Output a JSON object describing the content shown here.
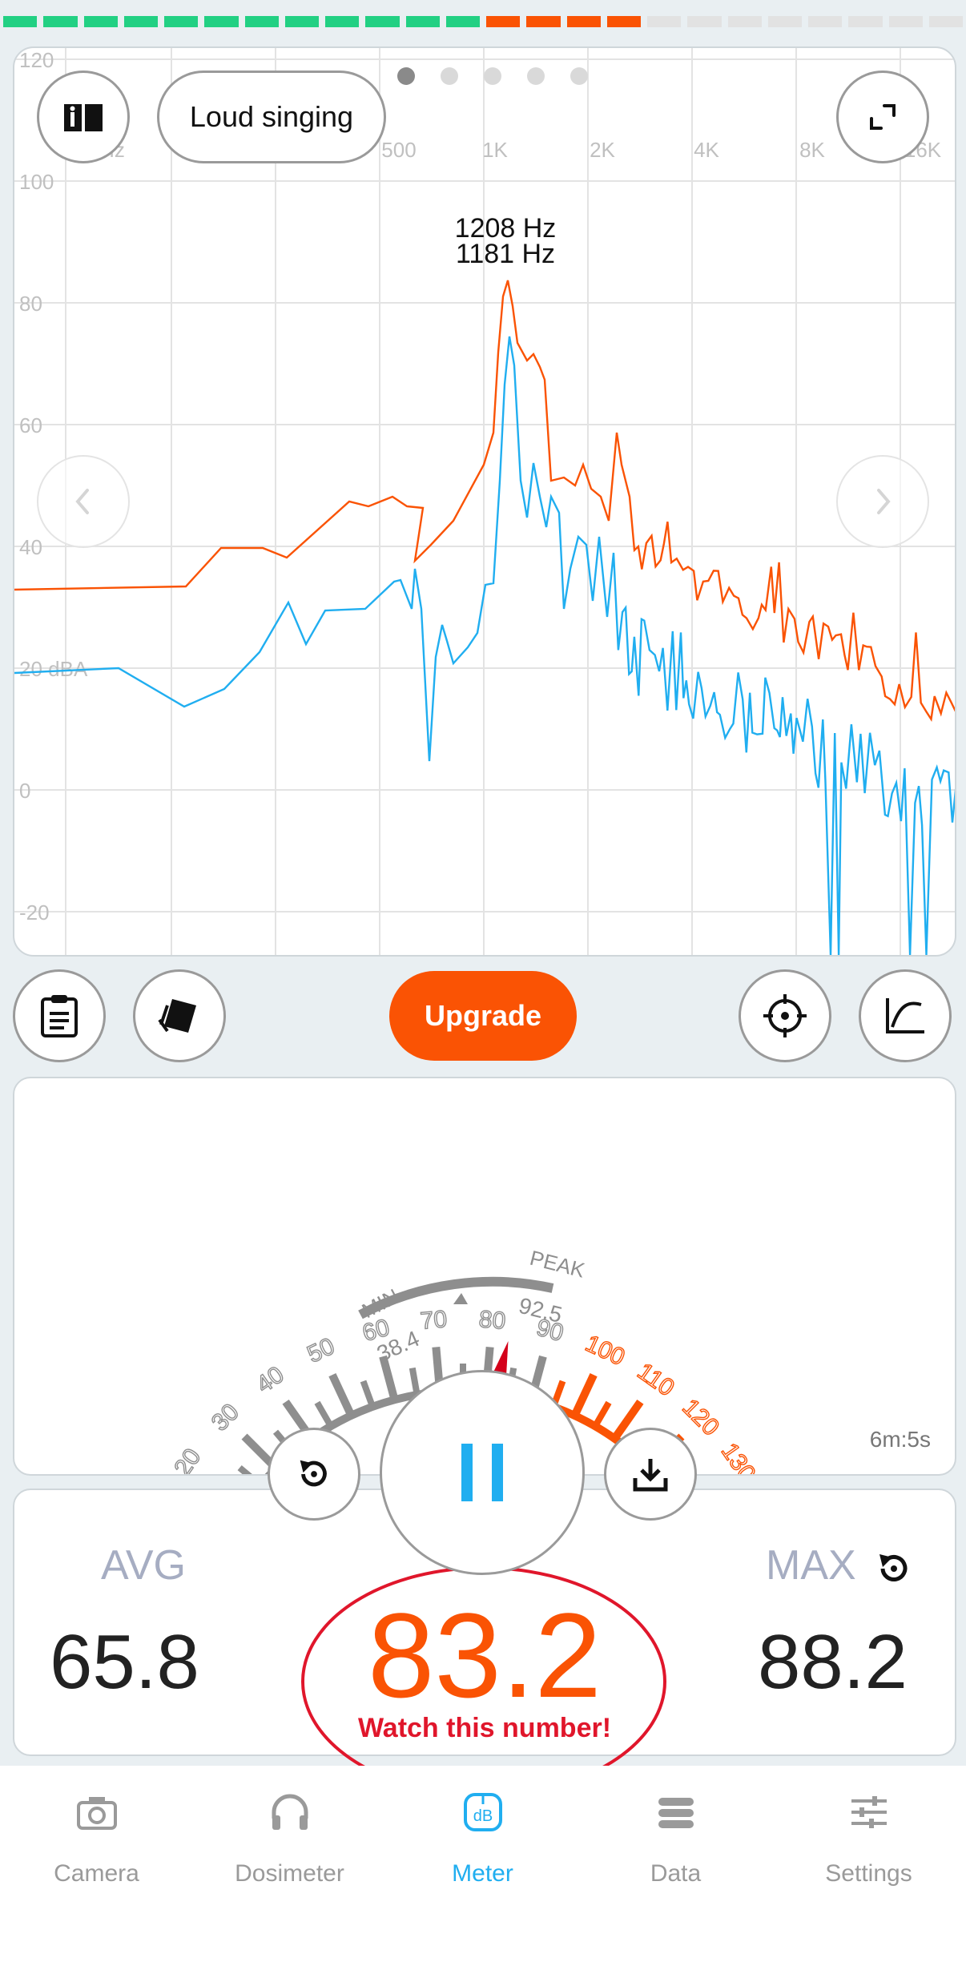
{
  "level_meter": {
    "segments": [
      {
        "color": "#22d083"
      },
      {
        "color": "#22d083"
      },
      {
        "color": "#22d083"
      },
      {
        "color": "#22d083"
      },
      {
        "color": "#22d083"
      },
      {
        "color": "#22d083"
      },
      {
        "color": "#22d083"
      },
      {
        "color": "#22d083"
      },
      {
        "color": "#22d083"
      },
      {
        "color": "#22d083"
      },
      {
        "color": "#22d083"
      },
      {
        "color": "#22d083"
      },
      {
        "color": "#fa5304"
      },
      {
        "color": "#fa5304"
      },
      {
        "color": "#fa5304"
      },
      {
        "color": "#fa5304"
      },
      {
        "color": "#e2e2e2"
      },
      {
        "color": "#e2e2e2"
      },
      {
        "color": "#e2e2e2"
      },
      {
        "color": "#e2e2e2"
      },
      {
        "color": "#e2e2e2"
      },
      {
        "color": "#e2e2e2"
      },
      {
        "color": "#e2e2e2"
      },
      {
        "color": "#e2e2e2"
      }
    ]
  },
  "spectrum": {
    "preset_label": "Loud singing",
    "page_indicator": {
      "count": 5,
      "active_index": 0
    },
    "y_ticks": [
      "120",
      "100",
      "80",
      "60",
      "40",
      "20 dBA",
      "0",
      "-20"
    ],
    "x_ticks": [
      "Hz",
      "",
      "500",
      "1K",
      "2K",
      "4K",
      "8K",
      "16K"
    ],
    "peak_orange_label": "1208 Hz",
    "peak_blue_label": "1181 Hz",
    "colors": {
      "peak_hold": "#fa5304",
      "live": "#20aef0",
      "grid": "#e3e3e3"
    }
  },
  "toolbar": {
    "upgrade_label": "Upgrade"
  },
  "meter": {
    "scale_labels": [
      "20",
      "30",
      "40",
      "50",
      "60",
      "70",
      "80",
      "90",
      "100",
      "110",
      "120",
      "130"
    ],
    "min_label": "MIN",
    "min_value": "38.4",
    "peak_label": "PEAK",
    "peak_value": "92.5",
    "elapsed": "6m:5s",
    "needle_db": 83.2
  },
  "stats": {
    "avg_label": "AVG",
    "avg_value": "65.8",
    "current_value": "83.2",
    "max_label": "MAX",
    "max_value": "88.2",
    "annotation": "Watch this number!"
  },
  "tabs": [
    {
      "label": "Camera",
      "icon": "camera-icon",
      "active": false
    },
    {
      "label": "Dosimeter",
      "icon": "headphones-icon",
      "active": false
    },
    {
      "label": "Meter",
      "icon": "db-meter-icon",
      "active": true
    },
    {
      "label": "Data",
      "icon": "data-stack-icon",
      "active": false
    },
    {
      "label": "Settings",
      "icon": "sliders-icon",
      "active": false
    }
  ],
  "accent": "#20aef0"
}
